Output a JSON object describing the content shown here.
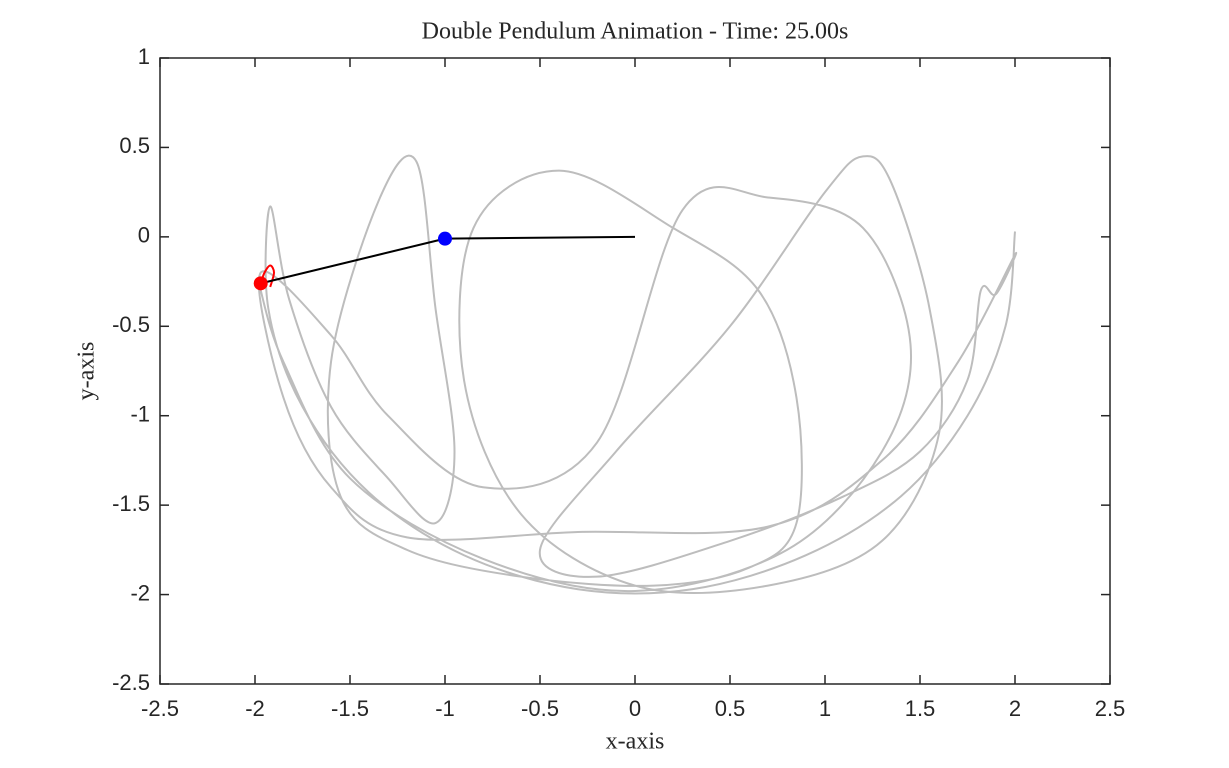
{
  "chart_data": {
    "type": "line",
    "title": "Double Pendulum Animation - Time: 25.00s",
    "x_label": "x-axis",
    "y_label": "y-axis",
    "xlim": [
      -2.5,
      2.5
    ],
    "ylim": [
      -2.5,
      1
    ],
    "xticks": [
      -2.5,
      -2,
      -1.5,
      -1,
      -0.5,
      0,
      0.5,
      1,
      1.5,
      2,
      2.5
    ],
    "yticks": [
      -2.5,
      -2,
      -1.5,
      -1,
      -0.5,
      0,
      0.5,
      1
    ],
    "grid": false,
    "series": [
      {
        "type": "line",
        "color": "#bdbdbd",
        "x": [
          2,
          1.95,
          1.75,
          1.4,
          0.9,
          0.3,
          -0.3,
          -0.9,
          -1.4,
          -1.75,
          -1.93,
          -1.92,
          -1.82,
          -1.6,
          -1.3,
          -1.05,
          -0.95,
          -1.05,
          -1.15,
          -1.35,
          -1.6,
          -1.55,
          -1.2,
          -0.6,
          0.1,
          0.6,
          0.85,
          0.85,
          0.65,
          0.2,
          -0.4,
          -0.85,
          -0.9,
          -0.6,
          0,
          0.7,
          1.3,
          1.6,
          1.55,
          1.35,
          1.2,
          1,
          0.5,
          -0.1,
          -0.5,
          -0.2,
          0.5,
          1.1,
          1.5,
          1.75,
          1.82,
          1.9,
          2,
          1.7,
          1.3,
          0.7,
          -0.3,
          -1.2,
          -1.6,
          -1.85,
          -1.97,
          -1.6,
          -1.3,
          -0.8,
          -0.2,
          0.25,
          0.7,
          1.2,
          1.45,
          1.3,
          0.8,
          0,
          -0.8,
          -1.5,
          -1.85,
          -1.98
        ],
        "y": [
          0.03,
          -0.5,
          -1,
          -1.45,
          -1.78,
          -1.97,
          -1.97,
          -1.78,
          -1.43,
          -0.95,
          -0.4,
          0.17,
          -0.35,
          -0.95,
          -1.35,
          -1.6,
          -1.2,
          -0.4,
          0.42,
          0.2,
          -0.7,
          -1.45,
          -1.75,
          -1.9,
          -1.95,
          -1.85,
          -1.6,
          -0.9,
          -0.3,
          0.05,
          0.37,
          0.05,
          -0.8,
          -1.55,
          -1.95,
          -1.95,
          -1.7,
          -1.1,
          -0.4,
          0.3,
          0.45,
          0.25,
          -0.5,
          -1.2,
          -1.75,
          -1.9,
          -1.7,
          -1.45,
          -1.2,
          -0.8,
          -0.3,
          -0.32,
          -0.1,
          -0.7,
          -1.25,
          -1.62,
          -1.65,
          -1.68,
          -1.4,
          -0.9,
          -0.2,
          -0.55,
          -1,
          -1.4,
          -1.15,
          0.15,
          0.22,
          0.05,
          -0.6,
          -1.2,
          -1.75,
          -1.98,
          -1.8,
          -1.35,
          -0.7,
          -0.26
        ]
      },
      {
        "type": "line",
        "color": "#ff0000",
        "x": [
          -1.97,
          -1.95,
          -1.92,
          -1.9,
          -1.92
        ],
        "y": [
          -0.26,
          -0.2,
          -0.16,
          -0.2,
          -0.28
        ]
      },
      {
        "type": "line",
        "color": "#000000",
        "x": [
          0,
          -1,
          -1.97
        ],
        "y": [
          0,
          -0.01,
          -0.26
        ]
      },
      {
        "type": "scatter",
        "color": "#0000ff",
        "x": [
          -1
        ],
        "y": [
          -0.01
        ]
      },
      {
        "type": "scatter",
        "color": "#ff0000",
        "x": [
          -1.97
        ],
        "y": [
          -0.26
        ]
      }
    ]
  }
}
